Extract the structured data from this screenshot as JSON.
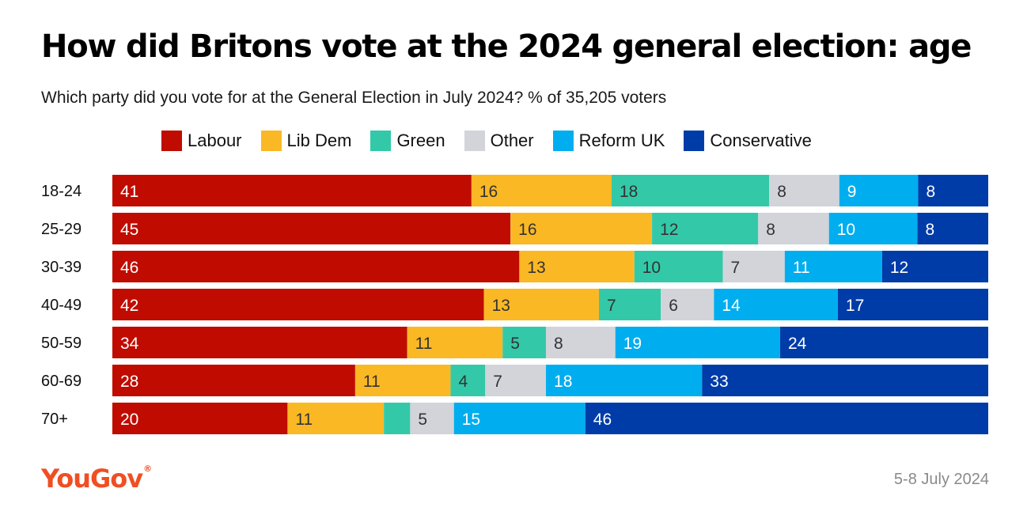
{
  "title": "How did Britons vote at the 2024 general election: age",
  "subtitle": "Which party did you vote for at the General Election in July 2024? % of 35,205 voters",
  "footer": {
    "brand": "YouGov",
    "date": "5-8 July 2024"
  },
  "chart_data": {
    "type": "bar",
    "orientation": "horizontal",
    "stacked": true,
    "categories": [
      "18-24",
      "25-29",
      "30-39",
      "40-49",
      "50-59",
      "60-69",
      "70+"
    ],
    "series": [
      {
        "name": "Labour",
        "color": "#c00c00",
        "label_color": "#ffffff",
        "values": [
          41,
          45,
          46,
          42,
          34,
          28,
          20
        ]
      },
      {
        "name": "Lib Dem",
        "color": "#fbb825",
        "label_color": "#333333",
        "values": [
          16,
          16,
          13,
          13,
          11,
          11,
          11
        ]
      },
      {
        "name": "Green",
        "color": "#33c9a8",
        "label_color": "#333333",
        "values": [
          18,
          12,
          10,
          7,
          5,
          4,
          3
        ]
      },
      {
        "name": "Other",
        "color": "#d2d4da",
        "label_color": "#333333",
        "values": [
          8,
          8,
          7,
          6,
          8,
          7,
          5
        ]
      },
      {
        "name": "Reform UK",
        "color": "#00aeef",
        "label_color": "#ffffff",
        "values": [
          9,
          10,
          11,
          14,
          19,
          18,
          15
        ]
      },
      {
        "name": "Conservative",
        "color": "#003ca8",
        "label_color": "#ffffff",
        "values": [
          8,
          8,
          12,
          17,
          24,
          33,
          46
        ]
      }
    ],
    "hidden_labels": [
      [
        6,
        2
      ]
    ],
    "legend": "top",
    "grid": false
  }
}
